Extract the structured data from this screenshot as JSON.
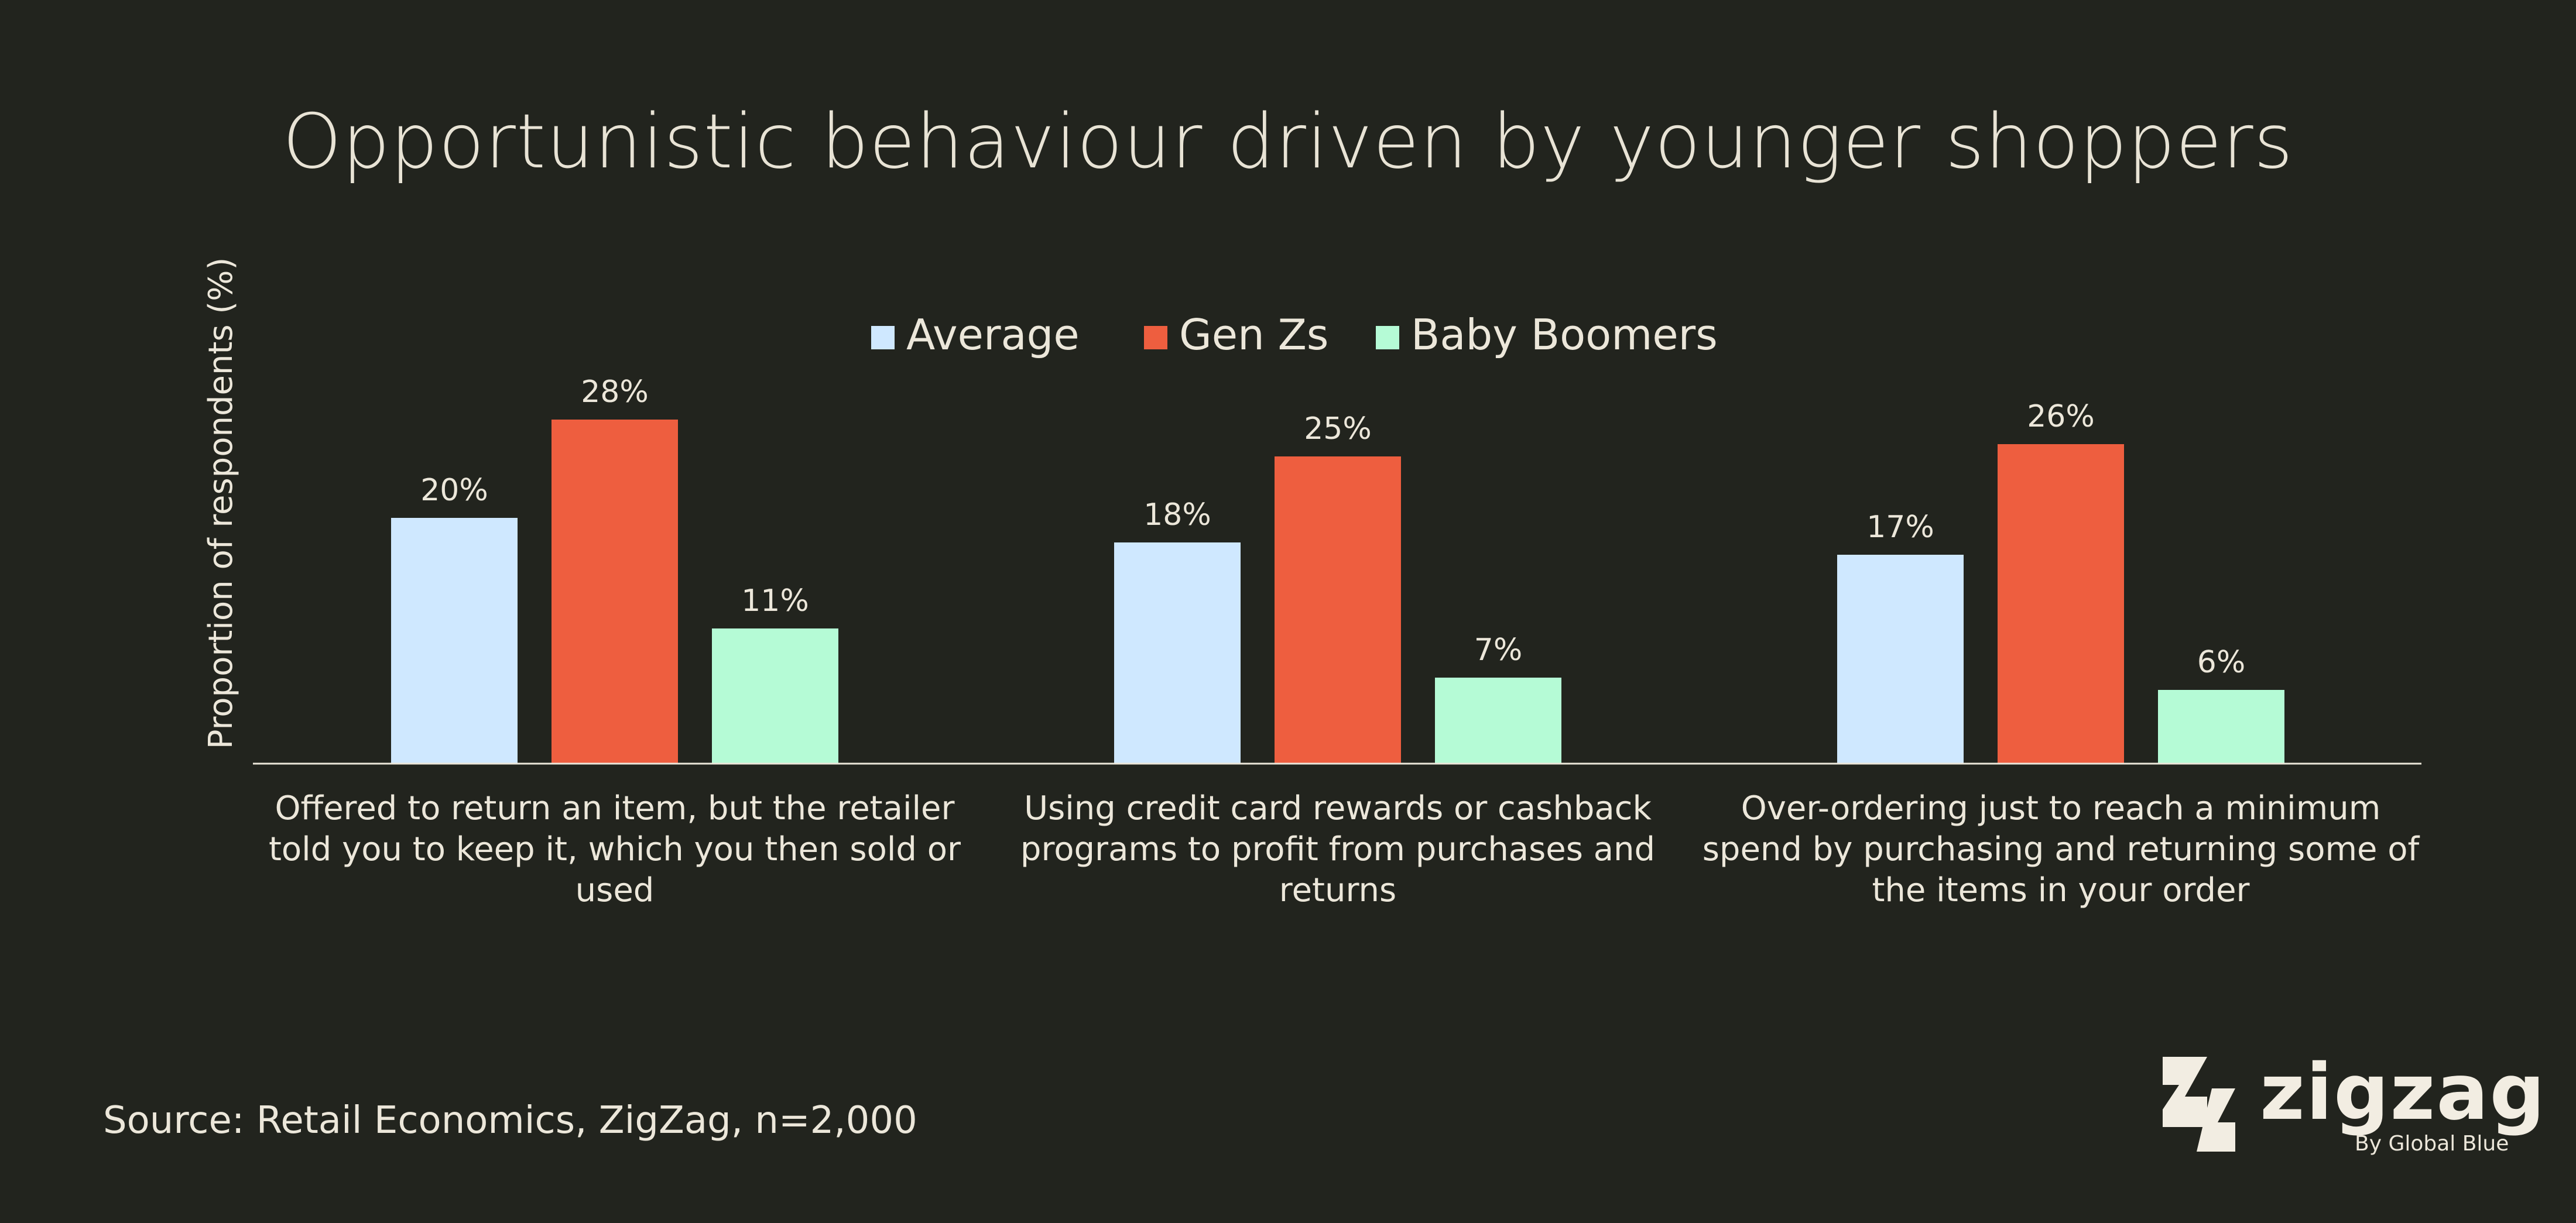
{
  "page": {
    "title": "Opportunistic behaviour driven by younger shoppers",
    "source": "Source: Retail Economics, ZigZag, n=2,000",
    "logo": {
      "word": "zigzag",
      "sub": "By Global Blue",
      "icon": "zigzag-logo-icon"
    }
  },
  "chart_data": {
    "type": "bar",
    "title": "Opportunistic behaviour driven by younger shoppers",
    "ylabel": "Proportion of respondents (%)",
    "xlabel": "",
    "ylim": [
      0,
      30
    ],
    "grid": false,
    "legend": "top-center",
    "categories": [
      [
        "Offered to return an item, but the retailer",
        "told you to keep it, which you then sold or",
        "used"
      ],
      [
        "Using credit card rewards or cashback",
        "programs to profit from purchases and",
        "returns"
      ],
      [
        "Over-ordering just to reach a minimum",
        "spend by purchasing and returning some of",
        "the items in your order"
      ]
    ],
    "series": [
      {
        "name": "Average",
        "color": "#cfe8ff",
        "values": [
          20,
          18,
          17
        ],
        "labels": [
          "20%",
          "18%",
          "17%"
        ]
      },
      {
        "name": "Gen Zs",
        "color": "#ee5e3f",
        "values": [
          28,
          25,
          26
        ],
        "labels": [
          "28%",
          "25%",
          "26%"
        ]
      },
      {
        "name": "Baby Boomers",
        "color": "#b5fbd6",
        "values": [
          11,
          7,
          6
        ],
        "labels": [
          "11%",
          "7%",
          "6%"
        ]
      }
    ]
  }
}
